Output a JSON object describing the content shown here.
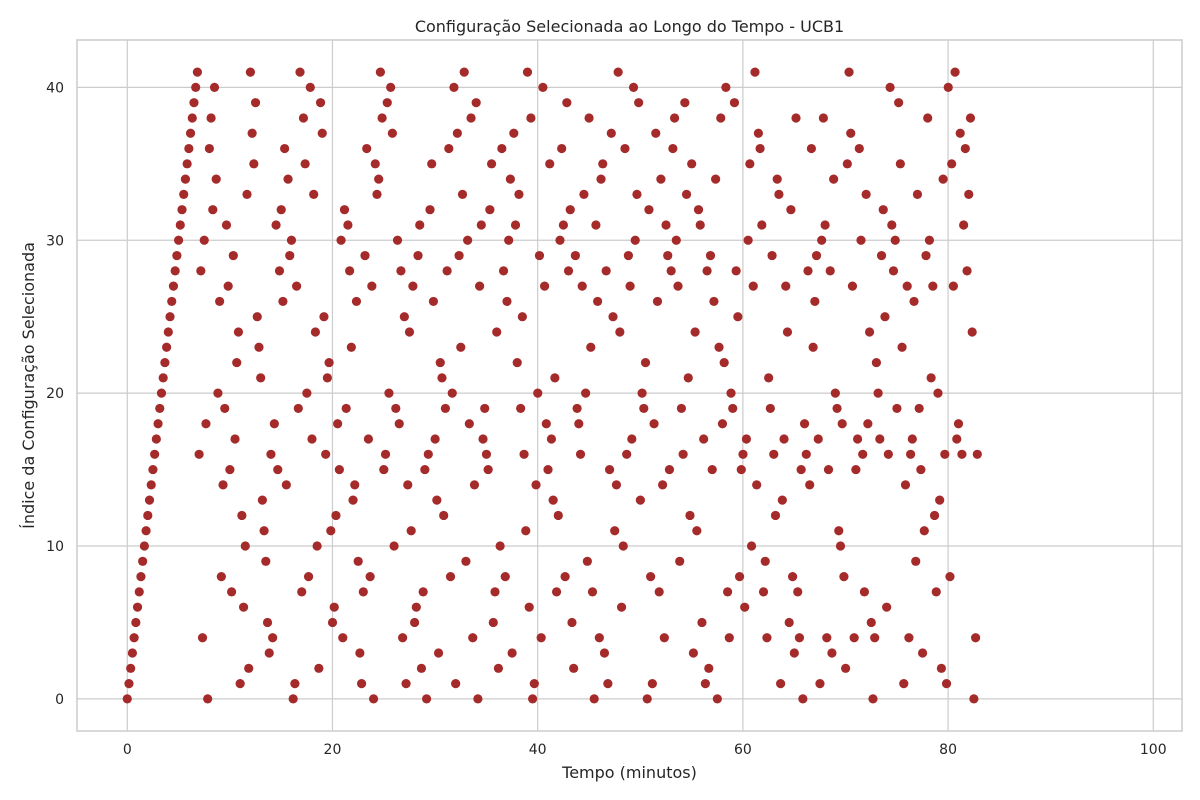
{
  "chart_data": {
    "type": "scatter",
    "title": "Configuração Selecionada ao Longo do Tempo - UCB1",
    "xlabel": "Tempo (minutos)",
    "ylabel": "Índice da Configuração Selecionada",
    "xlim": [
      -4.9,
      102.8
    ],
    "ylim": [
      -2.1,
      43.1
    ],
    "x_ticks": [
      0,
      20,
      40,
      60,
      80,
      100
    ],
    "y_ticks": [
      0,
      10,
      20,
      30,
      40
    ],
    "grid": true,
    "marker_color": "#a52a2a",
    "x_step": 0.1667,
    "y": [
      0,
      1,
      2,
      3,
      4,
      5,
      6,
      7,
      8,
      9,
      10,
      11,
      12,
      13,
      14,
      15,
      16,
      17,
      18,
      19,
      20,
      21,
      22,
      23,
      24,
      25,
      26,
      27,
      28,
      29,
      30,
      31,
      32,
      33,
      34,
      35,
      36,
      37,
      38,
      39,
      40,
      41,
      16,
      28,
      4,
      30,
      18,
      0,
      36,
      38,
      32,
      40,
      34,
      20,
      26,
      8,
      14,
      19,
      31,
      27,
      15,
      7,
      29,
      17,
      22,
      24,
      1,
      12,
      6,
      10,
      33,
      2,
      41,
      37,
      35,
      39,
      25,
      23,
      21,
      13,
      11,
      9,
      5,
      3,
      16,
      4,
      18,
      31,
      15,
      28,
      32,
      26,
      36,
      14,
      34,
      29,
      30,
      0,
      1,
      27,
      19,
      41,
      7,
      38,
      35,
      20,
      8,
      40,
      17,
      33,
      24,
      10,
      2,
      39,
      37,
      25,
      16,
      21,
      22,
      11,
      5,
      6,
      12,
      18,
      15,
      30,
      4,
      32,
      19,
      31,
      28,
      23,
      13,
      14,
      26,
      9,
      3,
      1,
      7,
      29,
      36,
      17,
      8,
      27,
      0,
      35,
      33,
      34,
      41,
      38,
      15,
      16,
      39,
      20,
      40,
      37,
      10,
      19,
      30,
      18,
      28,
      4,
      25,
      1,
      14,
      24,
      11,
      27,
      5,
      6,
      29,
      31,
      2,
      7,
      15,
      0,
      16,
      32,
      35,
      26,
      17,
      13,
      3,
      22,
      21,
      12,
      19,
      28,
      36,
      8,
      20,
      40,
      1,
      37,
      29,
      23,
      33,
      41,
      9,
      30,
      18,
      38,
      4,
      14,
      39,
      0,
      27,
      31,
      17,
      19,
      16,
      15,
      32,
      35,
      5,
      7,
      24,
      2,
      10,
      36,
      28,
      8,
      26,
      30,
      34,
      3,
      37,
      31,
      22,
      33,
      19,
      25,
      16,
      11,
      41,
      6,
      38,
      0,
      1,
      14,
      20,
      29,
      4,
      40,
      27,
      18,
      15,
      35,
      17,
      13,
      21,
      7,
      12,
      30,
      36,
      31,
      8,
      39,
      28,
      32,
      5,
      2,
      29,
      19,
      18,
      16,
      27,
      33,
      20,
      9,
      38,
      23,
      7,
      0,
      31,
      26,
      4,
      34,
      35,
      3,
      28,
      1,
      15,
      37,
      25,
      11,
      14,
      41,
      24,
      6,
      10,
      36,
      16,
      29,
      27,
      17,
      40,
      30,
      33,
      39,
      13,
      20,
      19,
      22,
      0,
      32,
      8,
      1,
      18,
      37,
      26,
      7,
      34,
      14,
      4,
      31,
      29,
      15,
      28,
      36,
      38,
      30,
      27,
      9,
      19,
      16,
      39,
      33,
      21,
      12,
      35,
      3,
      24,
      11,
      32,
      31,
      5,
      17,
      1,
      28,
      2,
      29,
      15,
      26,
      34,
      0,
      23,
      38,
      18,
      22,
      40,
      7,
      4,
      20,
      19,
      39,
      28,
      25,
      8,
      15,
      16,
      6,
      17,
      30,
      35,
      10,
      27,
      41,
      14,
      37,
      36,
      31,
      7,
      9,
      4,
      21,
      19,
      29,
      16,
      12,
      34,
      33,
      1,
      13,
      17,
      27,
      24,
      5,
      32,
      8,
      3,
      38,
      7,
      4,
      15,
      0,
      18,
      16,
      28,
      14,
      36,
      23,
      26,
      29,
      17,
      1,
      30,
      38,
      31,
      4,
      15,
      28,
      3,
      34,
      20,
      19,
      11,
      10,
      18,
      8,
      2,
      35,
      41,
      37,
      27,
      4,
      15,
      17,
      36,
      30,
      16,
      7,
      33,
      18,
      24,
      5,
      0,
      4,
      22,
      20,
      17,
      29,
      32,
      25,
      6,
      16,
      40,
      31,
      28,
      30,
      19,
      39,
      35,
      23,
      1,
      14,
      27,
      4,
      16,
      17,
      26,
      9,
      33,
      19,
      15,
      3,
      11,
      29,
      38,
      30,
      21,
      27,
      12,
      7,
      20,
      13,
      2,
      34,
      16,
      1,
      40,
      8,
      35,
      27,
      41,
      17,
      18,
      37,
      16,
      31,
      36,
      28,
      33,
      38,
      24,
      0,
      4,
      16
    ]
  }
}
